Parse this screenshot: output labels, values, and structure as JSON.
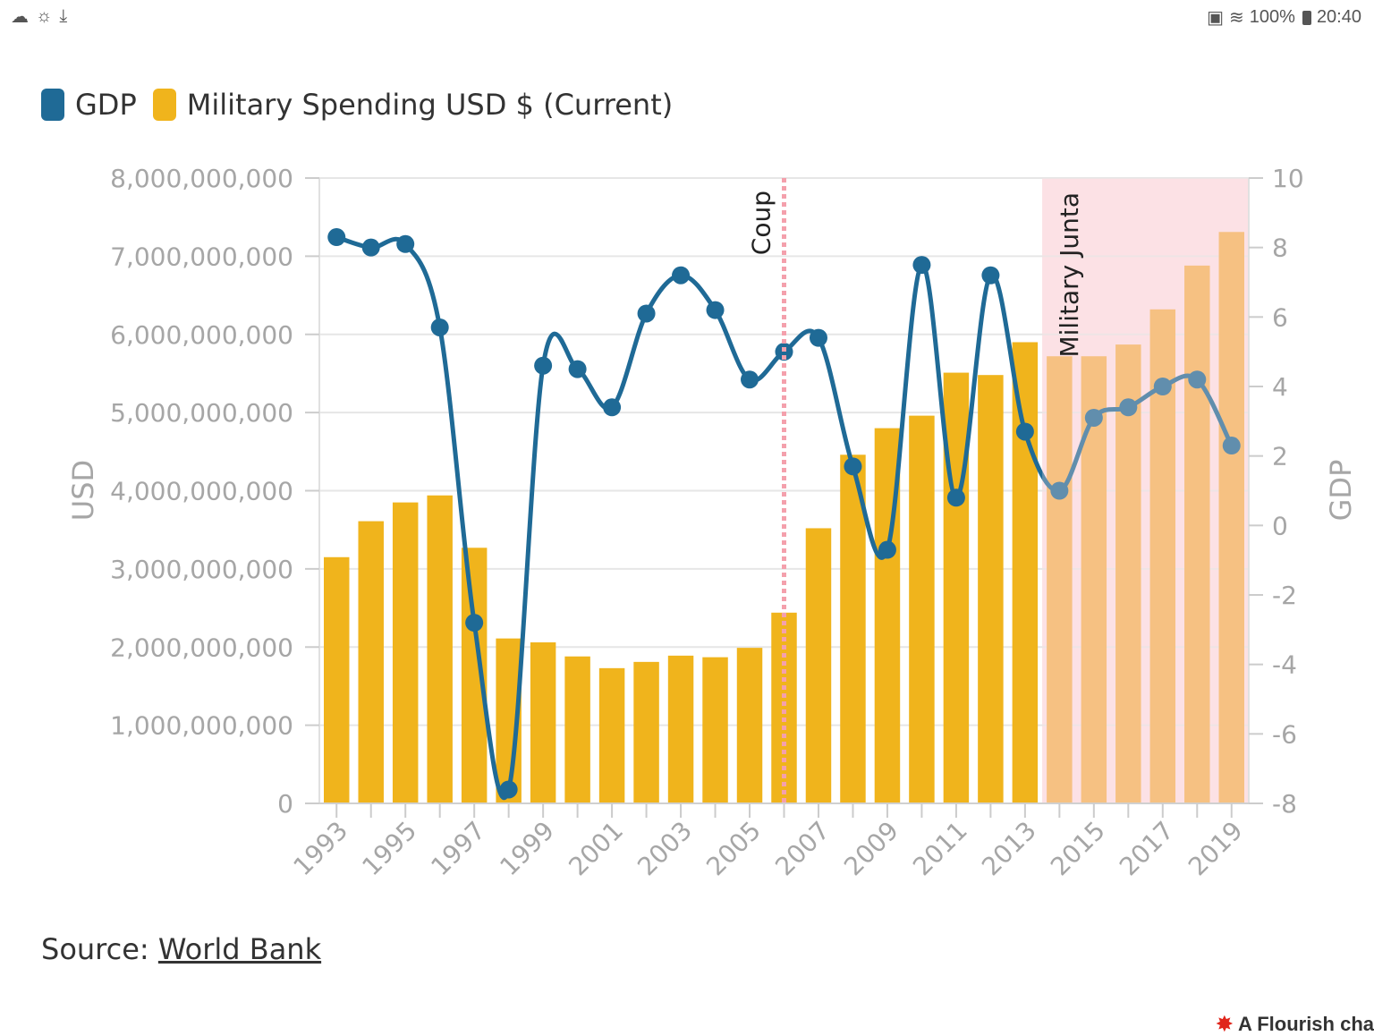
{
  "status_bar": {
    "left_icons": [
      "cloud-icon",
      "weather-icon",
      "download-icon"
    ],
    "battery": "100%",
    "time": "20:40"
  },
  "legend": [
    {
      "label": "GDP",
      "color": "#1f6a96"
    },
    {
      "label": "Military Spending USD $ (Current)",
      "color": "#f0b41c"
    }
  ],
  "source": {
    "prefix": "Source: ",
    "link_text": "World Bank"
  },
  "flourish_credit": "A Flourish cha",
  "chart_data": {
    "type": "bar",
    "x": [
      1993,
      1994,
      1995,
      1996,
      1997,
      1998,
      1999,
      2000,
      2001,
      2002,
      2003,
      2004,
      2005,
      2006,
      2007,
      2008,
      2009,
      2010,
      2011,
      2012,
      2013,
      2014,
      2015,
      2016,
      2017,
      2018,
      2019
    ],
    "x_tick_labels": [
      "1993",
      "1995",
      "1997",
      "1999",
      "2001",
      "2003",
      "2005",
      "2007",
      "2009",
      "2011",
      "2013",
      "2015",
      "2017",
      "2019"
    ],
    "series": [
      {
        "name": "Military Spending USD $ (Current)",
        "type": "bar",
        "axis": "left",
        "color": "#f0b41c",
        "values": [
          3150000000,
          3610000000,
          3850000000,
          3940000000,
          3270000000,
          2110000000,
          2060000000,
          1880000000,
          1730000000,
          1810000000,
          1890000000,
          1870000000,
          1990000000,
          2440000000,
          3520000000,
          4460000000,
          4800000000,
          4960000000,
          5510000000,
          5480000000,
          5900000000,
          5720000000,
          5720000000,
          5870000000,
          6320000000,
          6880000000,
          7310000000
        ]
      },
      {
        "name": "GDP",
        "type": "line",
        "axis": "right",
        "color": "#1f6a96",
        "values": [
          8.3,
          8.0,
          8.1,
          5.7,
          -2.8,
          -7.6,
          4.6,
          4.5,
          3.4,
          6.1,
          7.2,
          6.2,
          4.2,
          5.0,
          5.4,
          1.7,
          -0.7,
          7.5,
          0.8,
          7.2,
          2.7,
          1.0,
          3.1,
          3.4,
          4.0,
          4.2,
          2.3
        ]
      }
    ],
    "ylabel": "USD",
    "ylabel_right": "GDP",
    "ylim": [
      0,
      8000000000
    ],
    "ylim_right": [
      -8,
      10
    ],
    "y_ticks": [
      "0",
      "1,000,000,000",
      "2,000,000,000",
      "3,000,000,000",
      "4,000,000,000",
      "5,000,000,000",
      "6,000,000,000",
      "7,000,000,000",
      "8,000,000,000"
    ],
    "y_ticks_right": [
      "-8",
      "-6",
      "-4",
      "-2",
      "0",
      "2",
      "4",
      "6",
      "8",
      "10"
    ],
    "grid": true,
    "legend_position": "top-left",
    "annotations": [
      {
        "type": "line",
        "x": 2006,
        "label": "Coup",
        "color": "#f4a0ac"
      },
      {
        "type": "range",
        "x_start": 2013.5,
        "x_end": 2019.5,
        "label": "Military Junta",
        "color": "#fde2e6"
      }
    ]
  }
}
